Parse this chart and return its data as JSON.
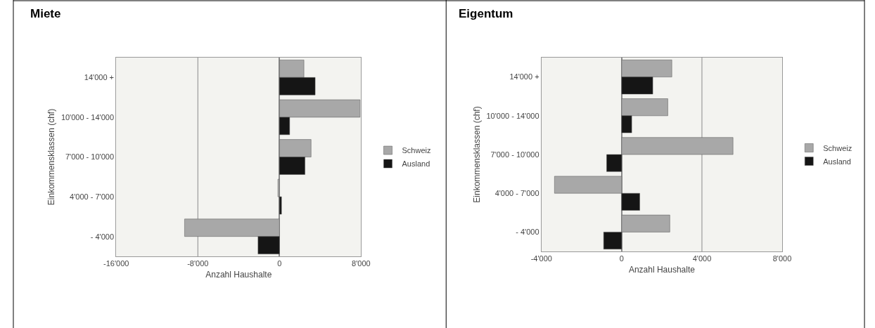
{
  "chart_data": [
    {
      "type": "bar",
      "title": "Miete",
      "orientation": "horizontal",
      "xlabel": "Anzahl Haushalte",
      "ylabel": "Einkommensklassen (chf)",
      "categories": [
        "14'000 +",
        "10'000 - 14'000",
        "7'000 - 10'000",
        "4'000 - 7'000",
        "- 4'000"
      ],
      "series": [
        {
          "name": "Schweiz",
          "color": "#a8a8a8",
          "values": [
            2400,
            7900,
            3100,
            -150,
            -9300
          ]
        },
        {
          "name": "Ausland",
          "color": "#151515",
          "values": [
            3500,
            1000,
            2500,
            200,
            -2100
          ]
        }
      ],
      "xlim": [
        -16000,
        8000
      ],
      "xticks": [
        {
          "value": -16000,
          "label": "-16'000"
        },
        {
          "value": -8000,
          "label": "-8'000"
        },
        0,
        {
          "value": 8000,
          "label": "8'000"
        }
      ],
      "ref_lines": [
        {
          "axis": "x",
          "value": -8000,
          "color": "#8a8a8a"
        }
      ],
      "legend": "right"
    },
    {
      "type": "bar",
      "title": "Eigentum",
      "orientation": "horizontal",
      "xlabel": "Anzahl Haushalte",
      "ylabel": "Einkommensklassen (chf)",
      "categories": [
        "14'000 +",
        "10'000 - 14'000",
        "7'000 - 10'000",
        "4'000 - 7'000",
        "- 4'000"
      ],
      "series": [
        {
          "name": "Schweiz",
          "color": "#a8a8a8",
          "values": [
            2500,
            2300,
            5550,
            -3350,
            2400
          ]
        },
        {
          "name": "Ausland",
          "color": "#151515",
          "values": [
            1550,
            500,
            -750,
            900,
            -900
          ]
        }
      ],
      "xlim": [
        -4000,
        8000
      ],
      "xticks": [
        {
          "value": -4000,
          "label": "-4'000"
        },
        0,
        {
          "value": 4000,
          "label": "4'000"
        },
        {
          "value": 8000,
          "label": "8'000"
        }
      ],
      "ref_lines": [
        {
          "axis": "x",
          "value": 4000,
          "color": "#8a8a8a"
        }
      ],
      "legend": "right"
    }
  ]
}
